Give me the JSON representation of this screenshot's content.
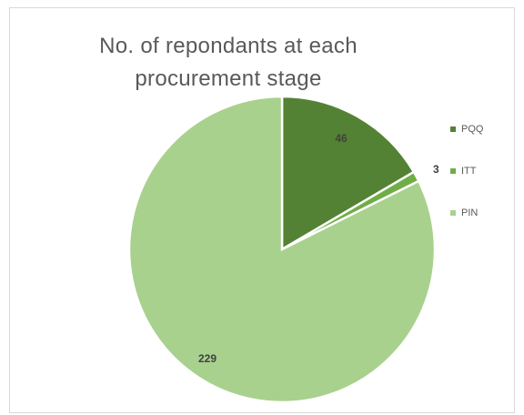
{
  "chart_data": {
    "type": "pie",
    "title": "No. of repondants at each procurement stage",
    "title_lines": [
      "No. of repondants at each",
      "procurement stage"
    ],
    "slices": [
      {
        "label": "PQQ",
        "value": 46,
        "color": "#548235"
      },
      {
        "label": "ITT",
        "value": 3,
        "color": "#70ad47"
      },
      {
        "label": "PIN",
        "value": 229,
        "color": "#a9d18e"
      }
    ],
    "legend_position": "right",
    "data_label_color": "#404040"
  }
}
